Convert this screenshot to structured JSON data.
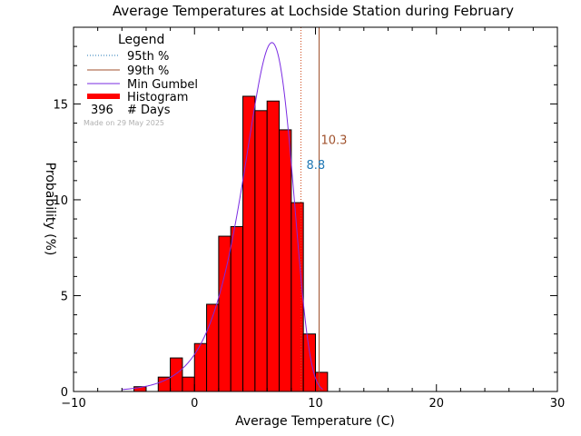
{
  "chart_data": {
    "type": "bar",
    "title": "Average Temperatures at Lochside Station during February",
    "xlabel": "Average Temperature (C)",
    "ylabel": "Probability (%)",
    "xlim": [
      -10,
      30
    ],
    "ylim": [
      0,
      19
    ],
    "xticks": [
      -10,
      0,
      10,
      20,
      30
    ],
    "yticks": [
      0,
      5,
      10,
      15
    ],
    "bin_width": 1,
    "bins": [
      {
        "x0": -5,
        "y": 0.25
      },
      {
        "x0": -3,
        "y": 0.75
      },
      {
        "x0": -2,
        "y": 1.75
      },
      {
        "x0": -1,
        "y": 0.75
      },
      {
        "x0": 0,
        "y": 2.5
      },
      {
        "x0": 1,
        "y": 4.55
      },
      {
        "x0": 2,
        "y": 8.1
      },
      {
        "x0": 3,
        "y": 8.6
      },
      {
        "x0": 4,
        "y": 15.4
      },
      {
        "x0": 5,
        "y": 14.65
      },
      {
        "x0": 6,
        "y": 15.15
      },
      {
        "x0": 7,
        "y": 13.65
      },
      {
        "x0": 8,
        "y": 9.85
      },
      {
        "x0": 9,
        "y": 3.0
      },
      {
        "x0": 10,
        "y": 1.0
      }
    ],
    "gumbel": {
      "mode": 6.4,
      "scale": 2.0,
      "peak": 18.2,
      "x_start": -6.0,
      "x_end": 10.6
    },
    "percentile_95": {
      "value": 8.8,
      "label": "8.8",
      "color": "#d04a1a"
    },
    "percentile_99": {
      "value": 10.3,
      "label": "10.3",
      "color": "#a0522d"
    },
    "legend": {
      "title": "Legend",
      "items": [
        {
          "label": "95th %",
          "style": "dotted",
          "color": "#1f77b4"
        },
        {
          "label": "99th %",
          "style": "solid",
          "color": "#a0522d"
        },
        {
          "label": "Min Gumbel",
          "style": "solid",
          "color": "#7a2be2"
        },
        {
          "label": "Histogram",
          "style": "thick",
          "color": "#ff0000"
        }
      ],
      "days_count": "396",
      "days_label": "# Days",
      "made_on": "Made on 29 May 2025"
    },
    "colors": {
      "histogram": "#ff0000",
      "gumbel": "#7a2be2",
      "p95_line": "#d04a1a",
      "p95_label": "#1f77b4",
      "p99": "#a0522d"
    }
  }
}
